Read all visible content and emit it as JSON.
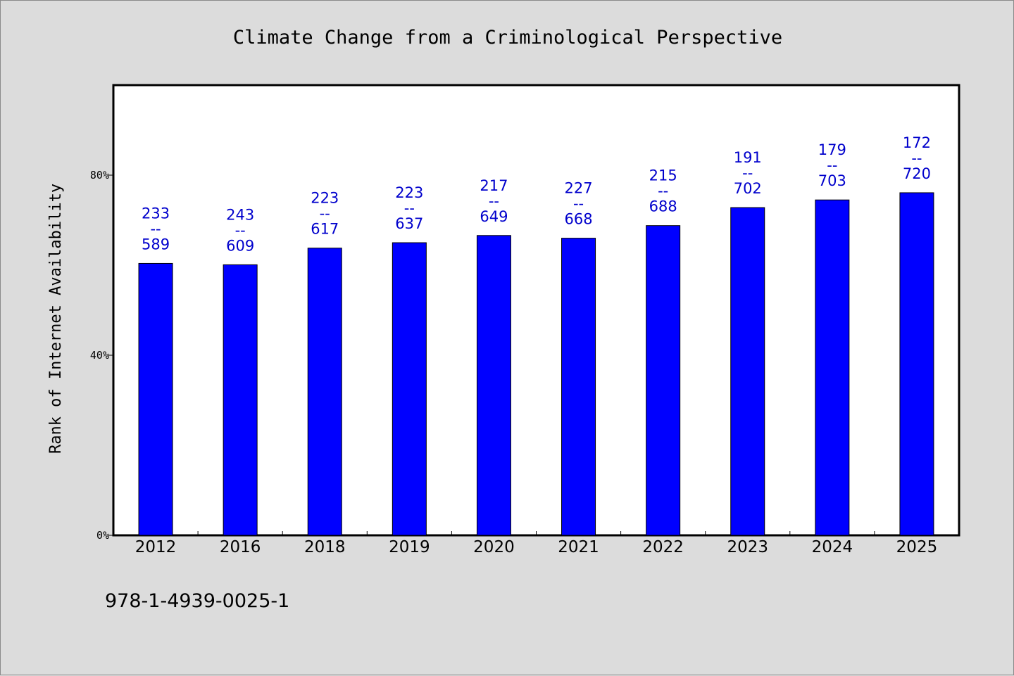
{
  "chart_data": {
    "type": "bar",
    "title": "Climate Change from a Criminological Perspective",
    "xlabel": "",
    "ylabel": "Rank of Internet Availability",
    "ylim": [
      0,
      100
    ],
    "y_ticks": [
      {
        "value": 0,
        "label": "0%"
      },
      {
        "value": 40,
        "label": "40%"
      },
      {
        "value": 80,
        "label": "80%"
      }
    ],
    "categories": [
      "2012",
      "2016",
      "2018",
      "2019",
      "2020",
      "2021",
      "2022",
      "2023",
      "2024",
      "2025"
    ],
    "values": [
      60.4,
      60.1,
      63.8,
      65.0,
      66.6,
      66.0,
      68.8,
      72.8,
      74.5,
      76.1
    ],
    "labels": [
      [
        "233",
        "--",
        "589"
      ],
      [
        "243",
        "--",
        "609"
      ],
      [
        "223",
        "--",
        "617"
      ],
      [
        "223",
        "--",
        "637"
      ],
      [
        "217",
        "--",
        "649"
      ],
      [
        "227",
        "--",
        "668"
      ],
      [
        "215",
        "--",
        "688"
      ],
      [
        "191",
        "--",
        "702"
      ],
      [
        "179",
        "--",
        "703"
      ],
      [
        "172",
        "--",
        "720"
      ]
    ],
    "bar_color": "#0000ff",
    "label_color": "#0000cc",
    "grid": false,
    "legend": "none"
  },
  "footer": {
    "code": "978-1-4939-0025-1"
  }
}
